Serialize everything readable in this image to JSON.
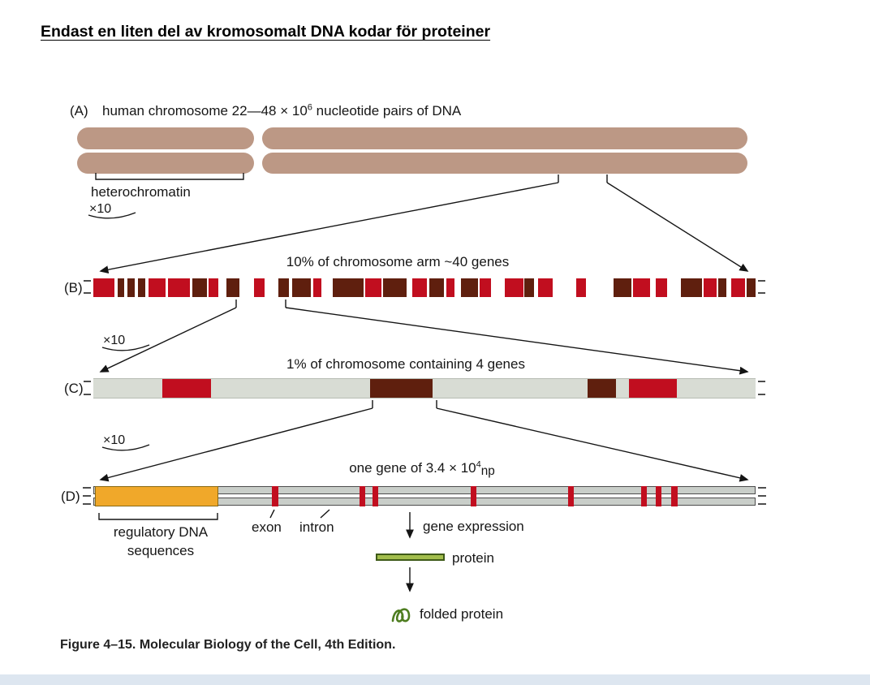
{
  "colors": {
    "tan": "#bc9885",
    "red": "#c10e1f",
    "dark": "#5f1f0e",
    "bar-c-bg": "#d8dcd4",
    "rail": "#c9cec9",
    "rail-border": "#4d4d4d",
    "orange": "#f0a82a",
    "orange-border": "#8a6a14",
    "green": "#a2bd4c",
    "green-dark": "#3e5a18",
    "squiggle": "#4e7d20",
    "line": "#141414",
    "strip": "#dde6f0"
  },
  "title": "Endast en liten del av kromosomalt DNA kodar för proteiner",
  "caption": "Figure 4–15. Molecular Biology of the Cell, 4th Edition.",
  "panelA": {
    "tag": "(A)",
    "heading_pre": "human chromosome 22—48 × 10",
    "heading_exp": "6",
    "heading_post": " nucleotide pairs of DNA",
    "heterochromatin": "heterochromatin",
    "zoom": "×10"
  },
  "panelB": {
    "tag": "(B)",
    "heading": "10% of chromosome arm ~40 genes",
    "zoom": "×10",
    "segments": [
      {
        "x": 0.0,
        "w": 3.2,
        "c": "red"
      },
      {
        "x": 3.7,
        "w": 1.0,
        "c": "dark"
      },
      {
        "x": 5.2,
        "w": 1.1,
        "c": "dark"
      },
      {
        "x": 6.8,
        "w": 1.1,
        "c": "dark"
      },
      {
        "x": 8.3,
        "w": 2.6,
        "c": "red"
      },
      {
        "x": 11.3,
        "w": 3.3,
        "c": "red"
      },
      {
        "x": 14.9,
        "w": 2.2,
        "c": "dark"
      },
      {
        "x": 17.4,
        "w": 1.5,
        "c": "red"
      },
      {
        "x": 20.1,
        "w": 2.0,
        "c": "dark"
      },
      {
        "x": 24.3,
        "w": 1.5,
        "c": "red"
      },
      {
        "x": 27.9,
        "w": 1.6,
        "c": "dark"
      },
      {
        "x": 30.0,
        "w": 2.9,
        "c": "dark"
      },
      {
        "x": 33.2,
        "w": 1.2,
        "c": "red"
      },
      {
        "x": 36.2,
        "w": 4.6,
        "c": "dark"
      },
      {
        "x": 41.1,
        "w": 2.4,
        "c": "red"
      },
      {
        "x": 43.8,
        "w": 3.5,
        "c": "dark"
      },
      {
        "x": 48.2,
        "w": 2.2,
        "c": "red"
      },
      {
        "x": 50.7,
        "w": 2.3,
        "c": "dark"
      },
      {
        "x": 53.3,
        "w": 1.2,
        "c": "red"
      },
      {
        "x": 55.5,
        "w": 2.6,
        "c": "dark"
      },
      {
        "x": 58.3,
        "w": 1.8,
        "c": "red"
      },
      {
        "x": 62.1,
        "w": 2.8,
        "c": "red"
      },
      {
        "x": 65.1,
        "w": 1.4,
        "c": "dark"
      },
      {
        "x": 67.2,
        "w": 2.2,
        "c": "red"
      },
      {
        "x": 72.9,
        "w": 1.5,
        "c": "red"
      },
      {
        "x": 78.5,
        "w": 2.8,
        "c": "dark"
      },
      {
        "x": 81.5,
        "w": 2.6,
        "c": "red"
      },
      {
        "x": 84.9,
        "w": 1.8,
        "c": "red"
      },
      {
        "x": 88.7,
        "w": 3.2,
        "c": "dark"
      },
      {
        "x": 92.1,
        "w": 2.0,
        "c": "red"
      },
      {
        "x": 94.4,
        "w": 1.2,
        "c": "dark"
      },
      {
        "x": 96.3,
        "w": 2.1,
        "c": "red"
      },
      {
        "x": 98.7,
        "w": 1.3,
        "c": "dark"
      }
    ]
  },
  "panelC": {
    "tag": "(C)",
    "heading": "1% of chromosome containing 4 genes",
    "zoom": "×10",
    "segments": [
      {
        "x": 10.4,
        "w": 7.4,
        "c": "red"
      },
      {
        "x": 41.8,
        "w": 9.4,
        "c": "dark"
      },
      {
        "x": 74.6,
        "w": 4.3,
        "c": "dark"
      },
      {
        "x": 80.9,
        "w": 7.2,
        "c": "red"
      }
    ]
  },
  "panelD": {
    "tag": "(D)",
    "heading_pre": "one gene of 3.4 × 10",
    "heading_exp": "4",
    "heading_post": "np",
    "regulatory_label_1": "regulatory DNA",
    "regulatory_label_2": "sequences",
    "exon_label": "exon",
    "intron_label": "intron",
    "gene_expression_label": "gene expression",
    "protein_label": "protein",
    "folded_protein_label": "folded protein",
    "segments": [
      {
        "x": 0.3,
        "w": 18.6,
        "c": "orange"
      },
      {
        "x": 27.0,
        "w": 0.9,
        "c": "red"
      },
      {
        "x": 40.2,
        "w": 0.9,
        "c": "red"
      },
      {
        "x": 42.1,
        "w": 0.9,
        "c": "red"
      },
      {
        "x": 57.0,
        "w": 0.9,
        "c": "red"
      },
      {
        "x": 71.7,
        "w": 0.9,
        "c": "red"
      },
      {
        "x": 82.7,
        "w": 0.9,
        "c": "red"
      },
      {
        "x": 84.9,
        "w": 0.9,
        "c": "red"
      },
      {
        "x": 87.3,
        "w": 0.9,
        "c": "red"
      }
    ]
  }
}
